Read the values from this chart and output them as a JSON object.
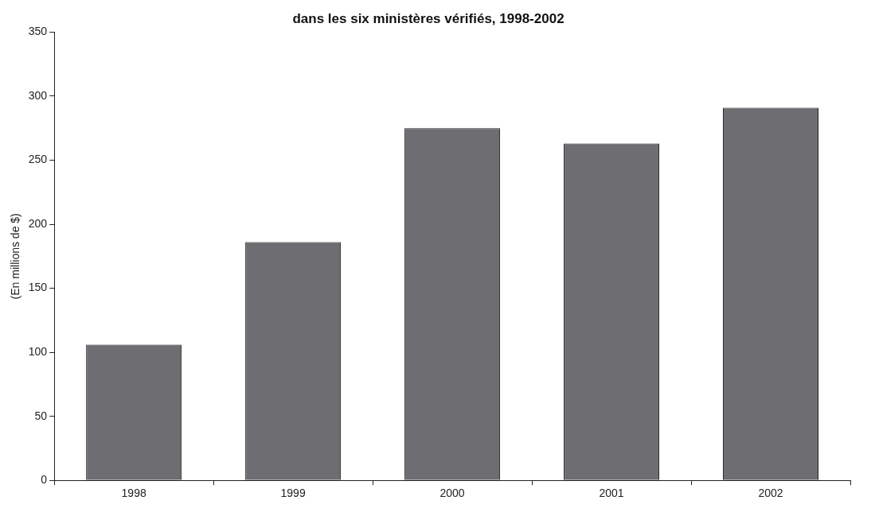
{
  "chart_data": {
    "type": "bar",
    "title": "dans les six ministères vérifiés, 1998-2002",
    "ylabel": "(En millions de $)",
    "categories": [
      "1998",
      "1999",
      "2000",
      "2001",
      "2002"
    ],
    "values": [
      106,
      186,
      275,
      263,
      291
    ],
    "color": "#6e6e72",
    "ylim": [
      0,
      350
    ],
    "yticks": [
      0,
      50,
      100,
      150,
      200,
      250,
      300,
      350
    ],
    "grid": false,
    "legend": false
  }
}
